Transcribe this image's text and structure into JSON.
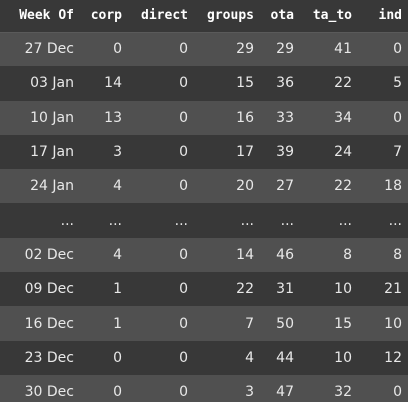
{
  "table": {
    "columns": [
      "Week Of",
      "corp",
      "direct",
      "groups",
      "ota",
      "ta_to",
      "ind"
    ],
    "rows": [
      [
        "27 Dec",
        "0",
        "0",
        "29",
        "29",
        "41",
        "0"
      ],
      [
        "03 Jan",
        "14",
        "0",
        "15",
        "36",
        "22",
        "5"
      ],
      [
        "10 Jan",
        "13",
        "0",
        "16",
        "33",
        "34",
        "0"
      ],
      [
        "17 Jan",
        "3",
        "0",
        "17",
        "39",
        "24",
        "7"
      ],
      [
        "24 Jan",
        "4",
        "0",
        "20",
        "27",
        "22",
        "18"
      ],
      [
        "...",
        "...",
        "...",
        "...",
        "...",
        "...",
        "..."
      ],
      [
        "02 Dec",
        "4",
        "0",
        "14",
        "46",
        "8",
        "8"
      ],
      [
        "09 Dec",
        "1",
        "0",
        "22",
        "31",
        "10",
        "21"
      ],
      [
        "16 Dec",
        "1",
        "0",
        "7",
        "50",
        "15",
        "10"
      ],
      [
        "23 Dec",
        "0",
        "0",
        "4",
        "44",
        "10",
        "12"
      ],
      [
        "30 Dec",
        "0",
        "0",
        "3",
        "47",
        "32",
        "0"
      ]
    ]
  },
  "colors": {
    "header_bg": "#383838",
    "row_odd": "#505050",
    "row_even": "#383838",
    "text": "#e8e8e8"
  }
}
